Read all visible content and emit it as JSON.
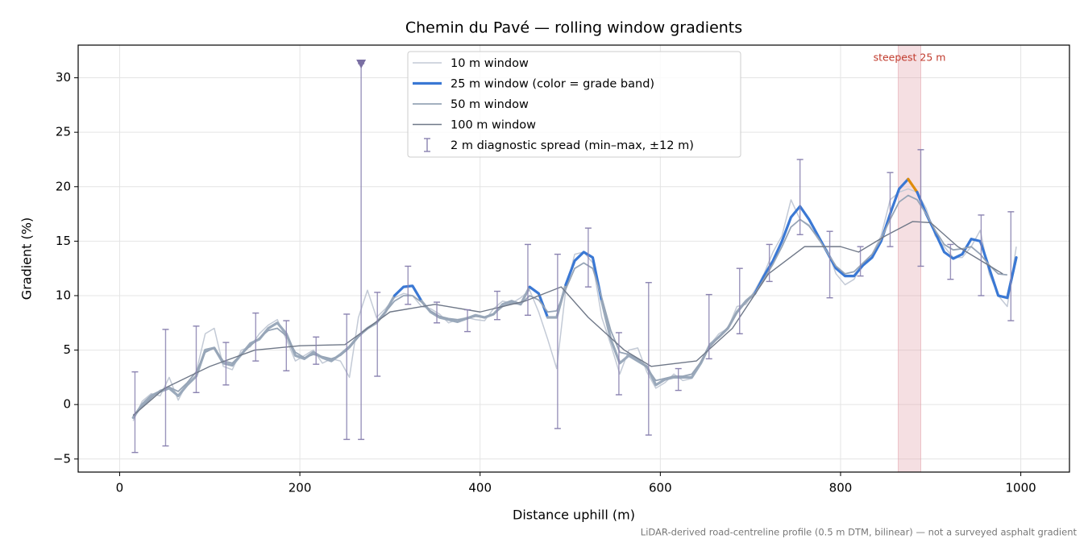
{
  "chart_data": {
    "type": "line",
    "title": "Chemin du Pavé — rolling window gradients",
    "xlabel": "Distance uphill (m)",
    "ylabel": "Gradient (%)",
    "footnote": "LiDAR-derived road-centreline profile (0.5 m DTM, bilinear) — not a surveyed asphalt gradient",
    "xlim": [
      -46,
      1054
    ],
    "ylim": [
      -6.2,
      33.0
    ],
    "xticks": [
      0,
      200,
      400,
      600,
      800,
      1000
    ],
    "yticks": [
      {
        "value": -5,
        "label": "−5"
      },
      0,
      5,
      10,
      15,
      20,
      25,
      30
    ],
    "grid": true,
    "legend": "upper center",
    "x": [
      15,
      25,
      35,
      45,
      55,
      65,
      75,
      85,
      95,
      105,
      115,
      125,
      135,
      145,
      155,
      165,
      175,
      185,
      195,
      205,
      215,
      225,
      235,
      245,
      255,
      265,
      275,
      285,
      295,
      305,
      315,
      325,
      335,
      345,
      355,
      365,
      375,
      385,
      395,
      405,
      415,
      425,
      435,
      445,
      455,
      465,
      475,
      485,
      495,
      505,
      515,
      525,
      535,
      545,
      555,
      565,
      575,
      585,
      595,
      605,
      615,
      625,
      635,
      645,
      655,
      665,
      675,
      685,
      695,
      705,
      715,
      725,
      735,
      745,
      755,
      765,
      775,
      785,
      795,
      805,
      815,
      825,
      835,
      845,
      855,
      865,
      875,
      885,
      895,
      905,
      915,
      925,
      935,
      945,
      955,
      965,
      975,
      985,
      995
    ],
    "series": [
      {
        "name": "10 m window",
        "color": "#c3cad6",
        "width": 1.5,
        "values": [
          -1.5,
          0.3,
          1.0,
          0.8,
          2.5,
          0.4,
          2.0,
          3.0,
          6.5,
          7.0,
          3.5,
          3.2,
          5.0,
          5.3,
          6.5,
          7.3,
          7.8,
          6.0,
          4.0,
          4.5,
          5.0,
          3.8,
          4.2,
          4.0,
          2.5,
          8.0,
          10.5,
          8.0,
          8.8,
          9.8,
          10.2,
          10.0,
          9.0,
          8.8,
          8.3,
          7.5,
          7.8,
          8.0,
          7.8,
          7.7,
          8.8,
          9.5,
          9.3,
          9.8,
          10.5,
          8.5,
          6.0,
          3.3,
          10.5,
          13.8,
          14.0,
          13.0,
          8.0,
          5.5,
          2.8,
          5.0,
          5.2,
          3.0,
          1.5,
          2.0,
          2.8,
          2.2,
          2.4,
          4.0,
          5.5,
          6.5,
          7.0,
          9.0,
          9.2,
          10.5,
          12.0,
          14.0,
          15.5,
          18.8,
          17.0,
          16.5,
          15.2,
          14.2,
          12.0,
          11.0,
          11.5,
          13.0,
          13.8,
          15.5,
          18.8,
          19.5,
          19.8,
          19.5,
          18.0,
          15.5,
          14.5,
          13.5,
          13.5,
          14.5,
          16.0,
          12.0,
          10.0,
          9.0,
          14.5
        ]
      },
      {
        "name": "25 m window (color = grade band)",
        "color": "#9aa9bb",
        "width": 3.2,
        "grade_bands": [
          {
            "min": 10,
            "color": "#3a78d4"
          },
          {
            "min": 20,
            "color": "#e08c0a"
          }
        ],
        "values": [
          -1.2,
          0.0,
          0.8,
          1.2,
          1.5,
          0.8,
          1.8,
          2.6,
          5.0,
          5.2,
          3.8,
          3.6,
          4.6,
          5.6,
          6.0,
          7.0,
          7.5,
          6.5,
          4.5,
          4.2,
          4.8,
          4.3,
          4.0,
          4.6,
          5.3,
          6.3,
          7.0,
          7.5,
          8.5,
          10.0,
          10.8,
          10.9,
          9.5,
          8.5,
          8.0,
          7.8,
          7.6,
          7.9,
          8.2,
          8.0,
          8.3,
          9.2,
          9.5,
          9.2,
          10.8,
          10.2,
          8.0,
          8.0,
          11.0,
          13.2,
          14.0,
          13.5,
          9.5,
          6.0,
          3.8,
          4.5,
          4.0,
          3.5,
          1.8,
          2.3,
          2.5,
          2.5,
          2.5,
          3.8,
          5.5,
          6.2,
          7.0,
          8.5,
          9.5,
          10.2,
          11.8,
          13.2,
          15.0,
          17.2,
          18.2,
          17.0,
          15.5,
          14.0,
          12.5,
          11.8,
          11.8,
          12.8,
          13.5,
          15.0,
          17.5,
          19.8,
          20.7,
          19.5,
          17.5,
          15.8,
          14.0,
          13.4,
          13.8,
          15.2,
          15.0,
          12.5,
          10.0,
          9.8,
          13.5
        ]
      },
      {
        "name": "50 m window",
        "color": "#96a4b6",
        "width": 1.8,
        "values": [
          -1.0,
          -0.2,
          0.6,
          1.3,
          1.6,
          1.2,
          2.0,
          3.0,
          4.8,
          5.2,
          4.0,
          3.8,
          4.6,
          5.4,
          6.1,
          6.8,
          7.0,
          6.3,
          4.8,
          4.3,
          4.6,
          4.4,
          4.2,
          4.5,
          5.2,
          6.2,
          7.0,
          7.6,
          8.5,
          9.5,
          10.0,
          10.0,
          9.4,
          8.6,
          8.1,
          7.9,
          7.8,
          7.9,
          8.1,
          8.0,
          8.3,
          9.0,
          9.3,
          9.2,
          10.0,
          9.6,
          8.5,
          8.6,
          10.6,
          12.5,
          13.0,
          12.5,
          9.8,
          6.8,
          4.8,
          4.6,
          4.2,
          3.4,
          2.2,
          2.4,
          2.6,
          2.6,
          2.8,
          3.9,
          5.3,
          6.2,
          7.1,
          8.4,
          9.4,
          10.2,
          11.5,
          12.9,
          14.5,
          16.3,
          17.0,
          16.4,
          15.3,
          14.0,
          12.7,
          12.0,
          12.2,
          13.0,
          13.8,
          15.2,
          17.0,
          18.6,
          19.2,
          18.8,
          17.5,
          16.0,
          14.7,
          14.2,
          14.3,
          14.5,
          13.8,
          12.8,
          12.0,
          11.9,
          null
        ]
      },
      {
        "name": "100 m window",
        "color": "#6f7888",
        "width": 1.4,
        "x": [
          15,
          50,
          100,
          150,
          200,
          250,
          300,
          350,
          400,
          450,
          490,
          520,
          560,
          590,
          640,
          680,
          720,
          760,
          800,
          820,
          850,
          880,
          900,
          930,
          960,
          980
        ],
        "values": [
          -1.0,
          1.5,
          3.5,
          5.0,
          5.4,
          5.5,
          8.5,
          9.2,
          8.5,
          9.5,
          10.8,
          8.0,
          5.0,
          3.5,
          4.0,
          7.0,
          12.0,
          14.5,
          14.5,
          14.0,
          15.5,
          16.8,
          16.7,
          14.5,
          13.0,
          12.0
        ]
      }
    ],
    "errorbars": {
      "name": "2 m diagnostic spread (min–max, ±12 m)",
      "color": "#8a82b0",
      "points": [
        {
          "x": 17,
          "low": -4.4,
          "high": 3.0
        },
        {
          "x": 51,
          "low": -3.8,
          "high": 6.9
        },
        {
          "x": 85,
          "low": 1.1,
          "high": 7.2
        },
        {
          "x": 118,
          "low": 1.8,
          "high": 5.7
        },
        {
          "x": 151,
          "low": 4.0,
          "high": 8.4
        },
        {
          "x": 185,
          "low": 3.1,
          "high": 7.7
        },
        {
          "x": 218,
          "low": 3.7,
          "high": 6.2
        },
        {
          "x": 252,
          "low": -3.2,
          "high": 8.3
        },
        {
          "x": 268,
          "low": -3.2,
          "high": 31.3,
          "marker": "triangle"
        },
        {
          "x": 286,
          "low": 2.6,
          "high": 10.3
        },
        {
          "x": 320,
          "low": 9.2,
          "high": 12.7
        },
        {
          "x": 352,
          "low": 7.5,
          "high": 9.4
        },
        {
          "x": 386,
          "low": 6.7,
          "high": 8.7
        },
        {
          "x": 419,
          "low": 7.8,
          "high": 10.4
        },
        {
          "x": 453,
          "low": 8.2,
          "high": 14.7
        },
        {
          "x": 486,
          "low": -2.2,
          "high": 13.8
        },
        {
          "x": 520,
          "low": 10.8,
          "high": 16.2
        },
        {
          "x": 554,
          "low": 0.9,
          "high": 6.6
        },
        {
          "x": 587,
          "low": -2.8,
          "high": 11.2
        },
        {
          "x": 620,
          "low": 1.3,
          "high": 3.3
        },
        {
          "x": 654,
          "low": 4.2,
          "high": 10.1
        },
        {
          "x": 688,
          "low": 6.5,
          "high": 12.5
        },
        {
          "x": 721,
          "low": 11.3,
          "high": 14.7
        },
        {
          "x": 755,
          "low": 15.6,
          "high": 22.5
        },
        {
          "x": 788,
          "low": 9.8,
          "high": 15.9
        },
        {
          "x": 822,
          "low": 11.8,
          "high": 14.5
        },
        {
          "x": 855,
          "low": 14.5,
          "high": 21.3
        },
        {
          "x": 889,
          "low": 12.7,
          "high": 23.4
        },
        {
          "x": 922,
          "low": 11.5,
          "high": 14.7
        },
        {
          "x": 956,
          "low": 10.0,
          "high": 17.4
        },
        {
          "x": 989,
          "low": 7.7,
          "high": 17.7
        }
      ]
    },
    "highlight": {
      "x": [
        864,
        889
      ],
      "label": "steepest 25 m",
      "color": "#e3a3ab",
      "label_color": "#c0392b"
    }
  }
}
